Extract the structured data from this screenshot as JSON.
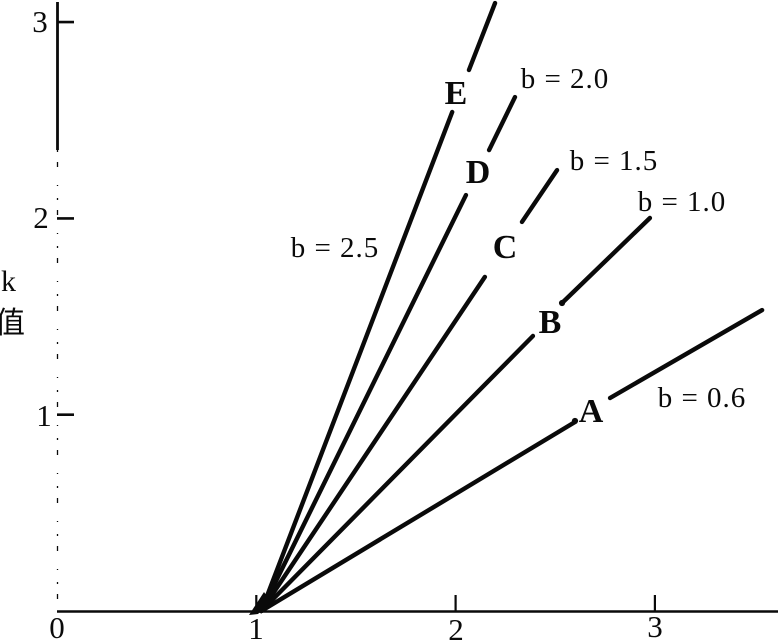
{
  "meta": {
    "bg": "#ffffff",
    "ink": "#0a0a0a"
  },
  "axis": {
    "ylabel_chars": [
      "k",
      "值"
    ],
    "y_ticks": [
      {
        "value": 3,
        "label": "3"
      },
      {
        "value": 2,
        "label": "2"
      },
      {
        "value": 1,
        "label": "1"
      }
    ],
    "x_ticks": [
      {
        "value": 0,
        "label": "0"
      },
      {
        "value": 1,
        "label": "1"
      },
      {
        "value": 2,
        "label": "2"
      },
      {
        "value": 3,
        "label": "3"
      }
    ]
  },
  "chart_data": {
    "type": "line",
    "title": "",
    "xlabel": "",
    "ylabel": "k值",
    "xlim": [
      0,
      3.62
    ],
    "ylim": [
      0,
      3.1
    ],
    "grid": false,
    "legend": "inline labels on lines",
    "x_tick_values": [
      0,
      1,
      2,
      3
    ],
    "y_tick_values": [
      1,
      2,
      3
    ],
    "common_origin": [
      1.025,
      0
    ],
    "model": "k = b(x - 1); five straight lines radiating from (1, 0)",
    "series": [
      {
        "letter": "E",
        "b": 2.5,
        "b_label": "b = 2.5",
        "segments": [
          [
            [
              1.025,
              0
            ],
            [
              1.983,
              2.542
            ]
          ],
          [
            [
              2.067,
              2.756
            ],
            [
              2.198,
              3.097
            ]
          ]
        ]
      },
      {
        "letter": "D",
        "b": 2.0,
        "b_label": "b = 2.0",
        "segments": [
          [
            [
              1.025,
              0
            ],
            [
              2.052,
              2.119
            ]
          ],
          [
            [
              2.168,
              2.348
            ],
            [
              2.298,
              2.618
            ]
          ]
        ]
      },
      {
        "letter": "C",
        "b": 1.5,
        "b_label": "b = 1.5",
        "segments": [
          [
            [
              1.025,
              0
            ],
            [
              2.147,
              1.702
            ]
          ],
          [
            [
              2.333,
              1.982
            ],
            [
              2.509,
              2.246
            ]
          ]
        ]
      },
      {
        "letter": "B",
        "b": 1.0,
        "b_label": "b = 1.0",
        "segments": [
          [
            [
              1.025,
              0
            ],
            [
              2.388,
              1.401
            ]
          ],
          [
            [
              2.534,
              1.569
            ],
            [
              2.975,
              2.002
            ]
          ]
        ]
      },
      {
        "letter": "A",
        "b": 0.6,
        "b_label": "b = 0.6",
        "segments": [
          [
            [
              1.025,
              0
            ],
            [
              2.599,
              0.963
            ]
          ],
          [
            [
              2.775,
              1.085
            ],
            [
              3.538,
              1.533
            ]
          ]
        ]
      }
    ],
    "point_marks": [
      [
        2.534,
        1.569
      ],
      [
        2.599,
        0.968
      ]
    ]
  }
}
